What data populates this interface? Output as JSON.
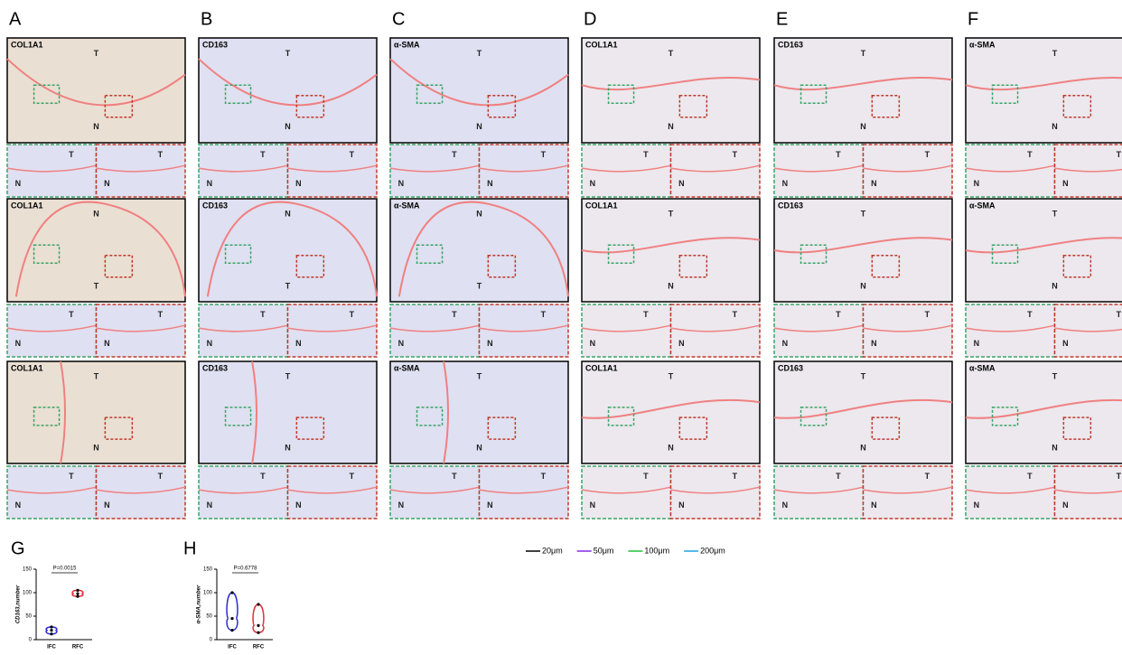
{
  "panels": [
    {
      "label": "A",
      "rows": [
        {
          "stain": "COL1A1",
          "main": [
            "T",
            "N"
          ],
          "insets": [
            [
              "T",
              "N"
            ],
            [
              "T",
              "N"
            ]
          ]
        },
        {
          "stain": "COL1A1",
          "main": [
            "N",
            "T"
          ],
          "insets": [
            [
              "T",
              "N"
            ],
            [
              "T",
              "N"
            ]
          ]
        },
        {
          "stain": "COL1A1",
          "main": [
            "T",
            "N"
          ],
          "insets": [
            [
              "T",
              "N"
            ],
            [
              "T",
              "N"
            ]
          ]
        }
      ]
    },
    {
      "label": "B",
      "rows": [
        {
          "stain": "CD163",
          "main": [
            "T",
            "N"
          ],
          "insets": [
            [
              "T",
              "N"
            ],
            [
              "T",
              "N"
            ]
          ]
        },
        {
          "stain": "CD163",
          "main": [
            "N",
            "T"
          ],
          "insets": [
            [
              "T",
              "N"
            ],
            [
              "T",
              "N"
            ]
          ]
        },
        {
          "stain": "CD163",
          "main": [
            "T",
            "N"
          ],
          "insets": [
            [
              "T",
              "N"
            ],
            [
              "T",
              "N"
            ]
          ]
        }
      ]
    },
    {
      "label": "C",
      "rows": [
        {
          "stain": "α-SMA",
          "main": [
            "T",
            "N"
          ],
          "insets": [
            [
              "T",
              "N"
            ],
            [
              "T",
              "N"
            ]
          ]
        },
        {
          "stain": "α-SMA",
          "main": [
            "N",
            "T"
          ],
          "insets": [
            [
              "T",
              "N"
            ],
            [
              "T",
              "N"
            ]
          ]
        },
        {
          "stain": "α-SMA",
          "main": [
            "T",
            "N"
          ],
          "insets": [
            [
              "T",
              "N"
            ],
            [
              "T",
              "N"
            ]
          ]
        }
      ]
    },
    {
      "label": "D",
      "rows": [
        {
          "stain": "COL1A1",
          "main": [
            "T",
            "N"
          ],
          "insets": [
            [
              "T",
              "N"
            ],
            [
              "T",
              "N"
            ]
          ]
        },
        {
          "stain": "COL1A1",
          "main": [
            "T",
            "N"
          ],
          "insets": [
            [
              "T",
              "N"
            ],
            [
              "T",
              "N"
            ]
          ]
        },
        {
          "stain": "COL1A1",
          "main": [
            "T",
            "N"
          ],
          "insets": [
            [
              "T",
              "N"
            ],
            [
              "T",
              "N"
            ]
          ]
        }
      ]
    },
    {
      "label": "E",
      "rows": [
        {
          "stain": "CD163",
          "main": [
            "T",
            "N"
          ],
          "insets": [
            [
              "T",
              "N"
            ],
            [
              "T",
              "N"
            ]
          ]
        },
        {
          "stain": "CD163",
          "main": [
            "T",
            "N"
          ],
          "insets": [
            [
              "T",
              "N"
            ],
            [
              "T",
              "N"
            ]
          ]
        },
        {
          "stain": "CD163",
          "main": [
            "T",
            "N"
          ],
          "insets": [
            [
              "T",
              "N"
            ],
            [
              "T",
              "N"
            ]
          ]
        }
      ]
    },
    {
      "label": "F",
      "rows": [
        {
          "stain": "α-SMA",
          "main": [
            "T",
            "N"
          ],
          "insets": [
            [
              "T",
              "N"
            ],
            [
              "T",
              "N"
            ]
          ]
        },
        {
          "stain": "α-SMA",
          "main": [
            "T",
            "N"
          ],
          "insets": [
            [
              "T",
              "N"
            ],
            [
              "T",
              "N"
            ]
          ]
        },
        {
          "stain": "α-SMA",
          "main": [
            "T",
            "N"
          ],
          "insets": [
            [
              "T",
              "N"
            ],
            [
              "T",
              "N"
            ]
          ]
        }
      ]
    }
  ],
  "scale_legend": [
    {
      "label": "20μm",
      "color": "#000000"
    },
    {
      "label": "50μm",
      "color": "#8a2be2"
    },
    {
      "label": "100μm",
      "color": "#22c03a"
    },
    {
      "label": "200μm",
      "color": "#1fa3e0"
    }
  ],
  "chart_data": [
    {
      "type": "violin",
      "label": "G",
      "ylabel": "CD163,number",
      "categories": [
        "IFC",
        "RFC"
      ],
      "values": [
        [
          12,
          20,
          27
        ],
        [
          92,
          98,
          105
        ]
      ],
      "colors": [
        "#2b2bd6",
        "#e0303a"
      ],
      "ylim": [
        0,
        150
      ],
      "yticks": [
        0,
        50,
        100,
        150
      ],
      "pvalue": "P=0.0015"
    },
    {
      "type": "violin",
      "label": "H",
      "ylabel": "α-SMA,number",
      "categories": [
        "IFC",
        "RFC"
      ],
      "values": [
        [
          20,
          45,
          100
        ],
        [
          15,
          30,
          75
        ]
      ],
      "colors": [
        "#2b2bd6",
        "#e0303a"
      ],
      "ylim": [
        0,
        150
      ],
      "yticks": [
        0,
        50,
        100,
        150
      ],
      "pvalue": "P=0.6778"
    }
  ]
}
